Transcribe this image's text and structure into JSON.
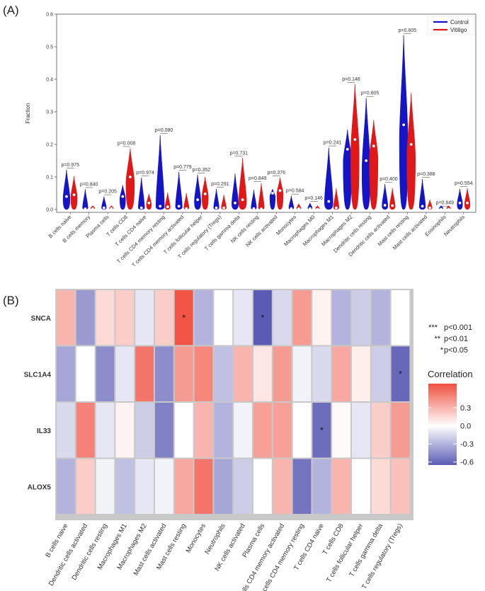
{
  "figure": {
    "panel_a_label": "(A)",
    "panel_b_label": "(B)"
  },
  "colors": {
    "control": "#1515c8",
    "vitiligo": "#e01818",
    "neg": "#5b5bb5",
    "mid": "#ffffff",
    "pos": "#f05040",
    "grid_border": "#c8c8c8"
  },
  "chart_data": [
    {
      "type": "violin",
      "title": "(A)",
      "ylabel": "Fraction",
      "ylim": [
        0,
        0.6
      ],
      "yticks": [
        "0.0",
        "0.1",
        "0.2",
        "0.3",
        "0.4",
        "0.5",
        "0.6"
      ],
      "legend": [
        "Control",
        "Vitiligo"
      ],
      "legend_position": "top-right",
      "categories": [
        "B cells naive",
        "B cells memory",
        "Plasma cells",
        "T cells CD8",
        "T cells CD4 naive",
        "T cells CD4 memory resting",
        "T cells CD4 memory activated",
        "T cells follicular helper",
        "T cells regulatory (Tregs)",
        "T cells gamma delta",
        "NK cells resting",
        "NK cells activated",
        "Monocytes",
        "Macrophages M0",
        "Macrophages M1",
        "Macrophages M2",
        "Dendritic cells resting",
        "Dendritic cells activated",
        "Mast cells resting",
        "Mast cells activated",
        "Eosinophils",
        "Neutrophils"
      ],
      "pvalues": [
        "p=0.975",
        "p=0.840",
        "p=0.205",
        "p=0.008",
        "p=0.974",
        "p=0.080",
        "p=0.779",
        "p=0.352",
        "p=0.291",
        "p=0.731",
        "p=0.849",
        "p=0.376",
        "p=0.584",
        "p=0.146",
        "p=0.241",
        "p=0.148",
        "p=0.805",
        "p=0.400",
        "p=0.605",
        "p=0.388",
        "p=0.849",
        "p=0.554"
      ],
      "series": [
        {
          "name": "Control",
          "max": [
            0.122,
            0.062,
            0.04,
            0.075,
            0.098,
            0.228,
            0.115,
            0.107,
            0.063,
            0.11,
            0.06,
            0.063,
            0.042,
            0.02,
            0.19,
            0.245,
            0.342,
            0.078,
            0.535,
            0.093,
            0.005,
            0.063
          ],
          "median": [
            0.04,
            0.002,
            0.005,
            0.04,
            0.005,
            0.01,
            0.01,
            0.03,
            0.005,
            0.02,
            0.003,
            0.05,
            0.003,
            0.003,
            0.025,
            0.185,
            0.15,
            0.013,
            0.26,
            0.01,
            0.001,
            0.02
          ]
        },
        {
          "name": "Vitiligo",
          "max": [
            0.102,
            0.008,
            0.012,
            0.188,
            0.048,
            0.052,
            0.05,
            0.1,
            0.045,
            0.158,
            0.08,
            0.098,
            0.018,
            0.003,
            0.065,
            0.385,
            0.275,
            0.065,
            0.358,
            0.03,
            0.003,
            0.065
          ],
          "median": [
            0.045,
            0.002,
            0.003,
            0.1,
            0.02,
            0.008,
            0.003,
            0.048,
            0.005,
            0.03,
            0.002,
            0.058,
            0.003,
            0.001,
            0.005,
            0.215,
            0.195,
            0.012,
            0.2,
            0.005,
            0.001,
            0.02
          ]
        }
      ]
    },
    {
      "type": "heatmap",
      "title": "(B)",
      "rows": [
        "SNCA",
        "SLC1A4",
        "IL33",
        "ALOX5"
      ],
      "columns": [
        "B cells naive",
        "Dendritic cells activated",
        "Dendritic cells resting",
        "Macrophages M1",
        "Macrophages M2",
        "Mast cells activated",
        "Mast cells resting",
        "Monocytes",
        "Neutrophils",
        "NK cells activated",
        "Plasma cells",
        "T cells CD4 memory activated",
        "T cells CD4 memory resting",
        "T cells CD4 naive",
        "T cells CD8",
        "T cells follicular helper",
        "T cells gamma delta",
        "T cells regulatory (Tregs)"
      ],
      "values": [
        [
          0.3,
          -0.4,
          0.15,
          0.2,
          -0.1,
          0.2,
          0.68,
          -0.3,
          0.0,
          -0.1,
          -0.65,
          -0.15,
          0.4,
          0.05,
          -0.3,
          -0.2,
          -0.3,
          0.0
        ],
        [
          -0.35,
          0.0,
          -0.45,
          -0.1,
          0.55,
          -0.45,
          0.4,
          0.48,
          -0.25,
          0.3,
          0.1,
          0.4,
          -0.05,
          -0.15,
          0.35,
          0.07,
          -0.2,
          -0.6
        ],
        [
          -0.15,
          0.5,
          -0.1,
          0.05,
          -0.2,
          -0.5,
          0.0,
          0.3,
          -0.3,
          -0.05,
          0.38,
          0.38,
          0.0,
          -0.58,
          0.02,
          -0.1,
          0.2,
          0.4
        ],
        [
          -0.3,
          0.2,
          -0.05,
          -0.25,
          -0.1,
          -0.05,
          0.35,
          0.55,
          -0.35,
          -0.2,
          0.0,
          0.3,
          -0.55,
          -0.3,
          0.3,
          0.0,
          0.15,
          0.25
        ]
      ],
      "significance": [
        [
          null,
          null,
          null,
          null,
          null,
          null,
          "*",
          null,
          null,
          null,
          "*",
          null,
          null,
          null,
          null,
          null,
          null,
          null
        ],
        [
          null,
          null,
          null,
          null,
          null,
          null,
          null,
          null,
          null,
          null,
          null,
          null,
          null,
          null,
          null,
          null,
          null,
          "*"
        ],
        [
          null,
          null,
          null,
          null,
          null,
          null,
          null,
          null,
          null,
          null,
          null,
          null,
          null,
          "*",
          null,
          null,
          null,
          null
        ],
        [
          null,
          null,
          null,
          null,
          null,
          null,
          null,
          null,
          null,
          null,
          null,
          null,
          null,
          null,
          null,
          null,
          null,
          null
        ]
      ],
      "significance_legend": [
        {
          "symbol": "***",
          "label": "p<0.001"
        },
        {
          "symbol": "**",
          "label": "p<0.01"
        },
        {
          "symbol": "*",
          "label": "p<0.05"
        }
      ],
      "colorbar_title": "Correlation",
      "colorbar_range": [
        -0.65,
        0.7
      ],
      "colorbar_ticks": [
        "0.3",
        "0.0",
        "-0.3",
        "-0.6"
      ]
    }
  ]
}
